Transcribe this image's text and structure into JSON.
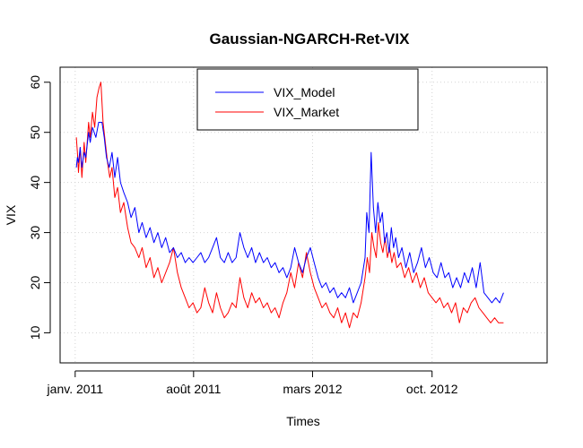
{
  "chart_data": {
    "type": "line",
    "title": "Gaussian-NGARCH-Ret-VIX",
    "xlabel": "Times",
    "ylabel": "VIX",
    "xlim": [
      "2010-12-05",
      "2013-04-25"
    ],
    "ylim": [
      4,
      63
    ],
    "x_ticks": [
      {
        "date": "2011-01-01",
        "label": "janv. 2011"
      },
      {
        "date": "2011-08-01",
        "label": "août 2011"
      },
      {
        "date": "2012-03-01",
        "label": "mars 2012"
      },
      {
        "date": "2012-10-01",
        "label": "oct. 2012"
      }
    ],
    "y_ticks": [
      10,
      20,
      30,
      40,
      50,
      60
    ],
    "grid": true,
    "legend_position": "top-center",
    "series": [
      {
        "name": "VIX_Model",
        "color": "#0000ff",
        "points": [
          [
            "2011-01-03",
            43
          ],
          [
            "2011-01-05",
            45
          ],
          [
            "2011-01-07",
            44
          ],
          [
            "2011-01-10",
            47
          ],
          [
            "2011-01-13",
            43
          ],
          [
            "2011-01-17",
            46
          ],
          [
            "2011-01-20",
            45
          ],
          [
            "2011-01-25",
            50
          ],
          [
            "2011-01-28",
            48
          ],
          [
            "2011-02-01",
            51
          ],
          [
            "2011-02-07",
            49
          ],
          [
            "2011-02-12",
            52
          ],
          [
            "2011-02-18",
            52
          ],
          [
            "2011-02-22",
            49
          ],
          [
            "2011-02-26",
            45
          ],
          [
            "2011-03-03",
            43
          ],
          [
            "2011-03-08",
            46
          ],
          [
            "2011-03-13",
            41
          ],
          [
            "2011-03-18",
            45
          ],
          [
            "2011-03-23",
            40
          ],
          [
            "2011-03-29",
            38
          ],
          [
            "2011-04-05",
            36
          ],
          [
            "2011-04-11",
            33
          ],
          [
            "2011-04-18",
            35
          ],
          [
            "2011-04-25",
            30
          ],
          [
            "2011-05-01",
            32
          ],
          [
            "2011-05-08",
            29
          ],
          [
            "2011-05-15",
            31
          ],
          [
            "2011-05-22",
            28
          ],
          [
            "2011-05-29",
            30
          ],
          [
            "2011-06-05",
            27
          ],
          [
            "2011-06-12",
            29
          ],
          [
            "2011-06-19",
            26
          ],
          [
            "2011-06-26",
            27
          ],
          [
            "2011-07-03",
            25
          ],
          [
            "2011-07-10",
            26
          ],
          [
            "2011-07-17",
            24
          ],
          [
            "2011-07-24",
            25
          ],
          [
            "2011-07-31",
            24
          ],
          [
            "2011-08-07",
            25
          ],
          [
            "2011-08-14",
            26
          ],
          [
            "2011-08-21",
            24
          ],
          [
            "2011-08-28",
            25
          ],
          [
            "2011-09-04",
            27
          ],
          [
            "2011-09-11",
            29
          ],
          [
            "2011-09-18",
            25
          ],
          [
            "2011-09-25",
            24
          ],
          [
            "2011-10-02",
            26
          ],
          [
            "2011-10-09",
            24
          ],
          [
            "2011-10-16",
            25
          ],
          [
            "2011-10-23",
            30
          ],
          [
            "2011-10-30",
            27
          ],
          [
            "2011-11-06",
            25
          ],
          [
            "2011-11-13",
            27
          ],
          [
            "2011-11-20",
            24
          ],
          [
            "2011-11-27",
            26
          ],
          [
            "2011-12-04",
            24
          ],
          [
            "2011-12-11",
            25
          ],
          [
            "2011-12-18",
            23
          ],
          [
            "2011-12-25",
            24
          ],
          [
            "2012-01-01",
            22
          ],
          [
            "2012-01-08",
            23
          ],
          [
            "2012-01-15",
            21
          ],
          [
            "2012-01-22",
            23
          ],
          [
            "2012-01-29",
            27
          ],
          [
            "2012-02-05",
            24
          ],
          [
            "2012-02-12",
            22
          ],
          [
            "2012-02-19",
            25
          ],
          [
            "2012-02-26",
            27
          ],
          [
            "2012-03-04",
            24
          ],
          [
            "2012-03-11",
            21
          ],
          [
            "2012-03-18",
            19
          ],
          [
            "2012-03-25",
            20
          ],
          [
            "2012-04-01",
            18
          ],
          [
            "2012-04-08",
            19
          ],
          [
            "2012-04-15",
            17
          ],
          [
            "2012-04-22",
            18
          ],
          [
            "2012-04-29",
            17
          ],
          [
            "2012-05-06",
            19
          ],
          [
            "2012-05-13",
            16
          ],
          [
            "2012-05-20",
            18
          ],
          [
            "2012-05-27",
            20
          ],
          [
            "2012-06-03",
            25
          ],
          [
            "2012-06-06",
            34
          ],
          [
            "2012-06-10",
            30
          ],
          [
            "2012-06-14",
            46
          ],
          [
            "2012-06-18",
            35
          ],
          [
            "2012-06-22",
            30
          ],
          [
            "2012-06-26",
            36
          ],
          [
            "2012-06-30",
            32
          ],
          [
            "2012-07-04",
            34
          ],
          [
            "2012-07-08",
            28
          ],
          [
            "2012-07-12",
            30
          ],
          [
            "2012-07-16",
            26
          ],
          [
            "2012-07-20",
            31
          ],
          [
            "2012-07-24",
            27
          ],
          [
            "2012-07-28",
            29
          ],
          [
            "2012-08-02",
            25
          ],
          [
            "2012-08-08",
            27
          ],
          [
            "2012-08-15",
            23
          ],
          [
            "2012-08-22",
            26
          ],
          [
            "2012-08-29",
            22
          ],
          [
            "2012-09-05",
            24
          ],
          [
            "2012-09-12",
            27
          ],
          [
            "2012-09-19",
            23
          ],
          [
            "2012-09-26",
            25
          ],
          [
            "2012-10-03",
            22
          ],
          [
            "2012-10-10",
            21
          ],
          [
            "2012-10-17",
            24
          ],
          [
            "2012-10-24",
            21
          ],
          [
            "2012-10-31",
            22
          ],
          [
            "2012-11-07",
            19
          ],
          [
            "2012-11-14",
            21
          ],
          [
            "2012-11-21",
            19
          ],
          [
            "2012-11-28",
            22
          ],
          [
            "2012-12-05",
            20
          ],
          [
            "2012-12-12",
            23
          ],
          [
            "2012-12-19",
            19
          ],
          [
            "2012-12-26",
            24
          ],
          [
            "2013-01-02",
            18
          ],
          [
            "2013-01-09",
            17
          ],
          [
            "2013-01-16",
            16
          ],
          [
            "2013-01-23",
            17
          ],
          [
            "2013-01-30",
            16
          ],
          [
            "2013-02-06",
            18
          ]
        ]
      },
      {
        "name": "VIX_Market",
        "color": "#ff0000",
        "points": [
          [
            "2011-01-03",
            49
          ],
          [
            "2011-01-05",
            46
          ],
          [
            "2011-01-07",
            42
          ],
          [
            "2011-01-10",
            47
          ],
          [
            "2011-01-13",
            41
          ],
          [
            "2011-01-17",
            48
          ],
          [
            "2011-01-20",
            44
          ],
          [
            "2011-01-25",
            52
          ],
          [
            "2011-01-28",
            49
          ],
          [
            "2011-02-01",
            54
          ],
          [
            "2011-02-05",
            51
          ],
          [
            "2011-02-09",
            57
          ],
          [
            "2011-02-13",
            59
          ],
          [
            "2011-02-16",
            60
          ],
          [
            "2011-02-20",
            52
          ],
          [
            "2011-02-24",
            48
          ],
          [
            "2011-02-28",
            44
          ],
          [
            "2011-03-04",
            41
          ],
          [
            "2011-03-08",
            43
          ],
          [
            "2011-03-13",
            37
          ],
          [
            "2011-03-18",
            39
          ],
          [
            "2011-03-23",
            34
          ],
          [
            "2011-03-29",
            36
          ],
          [
            "2011-04-05",
            31
          ],
          [
            "2011-04-11",
            28
          ],
          [
            "2011-04-18",
            27
          ],
          [
            "2011-04-25",
            25
          ],
          [
            "2011-05-01",
            27
          ],
          [
            "2011-05-08",
            23
          ],
          [
            "2011-05-15",
            25
          ],
          [
            "2011-05-22",
            21
          ],
          [
            "2011-05-29",
            23
          ],
          [
            "2011-06-05",
            20
          ],
          [
            "2011-06-12",
            22
          ],
          [
            "2011-06-19",
            24
          ],
          [
            "2011-06-26",
            27
          ],
          [
            "2011-07-03",
            22
          ],
          [
            "2011-07-10",
            19
          ],
          [
            "2011-07-17",
            17
          ],
          [
            "2011-07-24",
            15
          ],
          [
            "2011-07-31",
            16
          ],
          [
            "2011-08-07",
            14
          ],
          [
            "2011-08-14",
            15
          ],
          [
            "2011-08-21",
            19
          ],
          [
            "2011-08-28",
            16
          ],
          [
            "2011-09-04",
            14
          ],
          [
            "2011-09-11",
            18
          ],
          [
            "2011-09-18",
            15
          ],
          [
            "2011-09-25",
            13
          ],
          [
            "2011-10-02",
            14
          ],
          [
            "2011-10-09",
            16
          ],
          [
            "2011-10-16",
            15
          ],
          [
            "2011-10-23",
            21
          ],
          [
            "2011-10-30",
            17
          ],
          [
            "2011-11-06",
            15
          ],
          [
            "2011-11-13",
            18
          ],
          [
            "2011-11-20",
            16
          ],
          [
            "2011-11-27",
            17
          ],
          [
            "2011-12-04",
            15
          ],
          [
            "2011-12-11",
            16
          ],
          [
            "2011-12-18",
            14
          ],
          [
            "2011-12-25",
            15
          ],
          [
            "2012-01-01",
            13
          ],
          [
            "2012-01-08",
            16
          ],
          [
            "2012-01-15",
            18
          ],
          [
            "2012-01-22",
            22
          ],
          [
            "2012-01-29",
            19
          ],
          [
            "2012-02-05",
            24
          ],
          [
            "2012-02-12",
            21
          ],
          [
            "2012-02-19",
            26
          ],
          [
            "2012-02-26",
            22
          ],
          [
            "2012-03-04",
            19
          ],
          [
            "2012-03-11",
            17
          ],
          [
            "2012-03-18",
            15
          ],
          [
            "2012-03-25",
            16
          ],
          [
            "2012-04-01",
            14
          ],
          [
            "2012-04-08",
            13
          ],
          [
            "2012-04-15",
            15
          ],
          [
            "2012-04-22",
            12
          ],
          [
            "2012-04-29",
            14
          ],
          [
            "2012-05-06",
            11
          ],
          [
            "2012-05-13",
            14
          ],
          [
            "2012-05-20",
            13
          ],
          [
            "2012-05-27",
            16
          ],
          [
            "2012-06-03",
            21
          ],
          [
            "2012-06-07",
            25
          ],
          [
            "2012-06-11",
            22
          ],
          [
            "2012-06-15",
            30
          ],
          [
            "2012-06-19",
            27
          ],
          [
            "2012-06-23",
            25
          ],
          [
            "2012-06-27",
            32
          ],
          [
            "2012-07-01",
            28
          ],
          [
            "2012-07-05",
            26
          ],
          [
            "2012-07-09",
            29
          ],
          [
            "2012-07-13",
            25
          ],
          [
            "2012-07-17",
            27
          ],
          [
            "2012-07-21",
            24
          ],
          [
            "2012-07-25",
            26
          ],
          [
            "2012-07-30",
            23
          ],
          [
            "2012-08-06",
            24
          ],
          [
            "2012-08-13",
            21
          ],
          [
            "2012-08-20",
            23
          ],
          [
            "2012-08-27",
            20
          ],
          [
            "2012-09-03",
            22
          ],
          [
            "2012-09-10",
            19
          ],
          [
            "2012-09-17",
            21
          ],
          [
            "2012-09-24",
            18
          ],
          [
            "2012-10-01",
            17
          ],
          [
            "2012-10-08",
            16
          ],
          [
            "2012-10-15",
            17
          ],
          [
            "2012-10-22",
            15
          ],
          [
            "2012-10-29",
            16
          ],
          [
            "2012-11-05",
            14
          ],
          [
            "2012-11-12",
            16
          ],
          [
            "2012-11-19",
            12
          ],
          [
            "2012-11-26",
            15
          ],
          [
            "2012-12-03",
            14
          ],
          [
            "2012-12-10",
            16
          ],
          [
            "2012-12-17",
            17
          ],
          [
            "2012-12-24",
            15
          ],
          [
            "2012-12-31",
            14
          ],
          [
            "2013-01-07",
            13
          ],
          [
            "2013-01-14",
            12
          ],
          [
            "2013-01-21",
            13
          ],
          [
            "2013-01-28",
            12
          ],
          [
            "2013-02-06",
            12
          ]
        ]
      }
    ]
  }
}
